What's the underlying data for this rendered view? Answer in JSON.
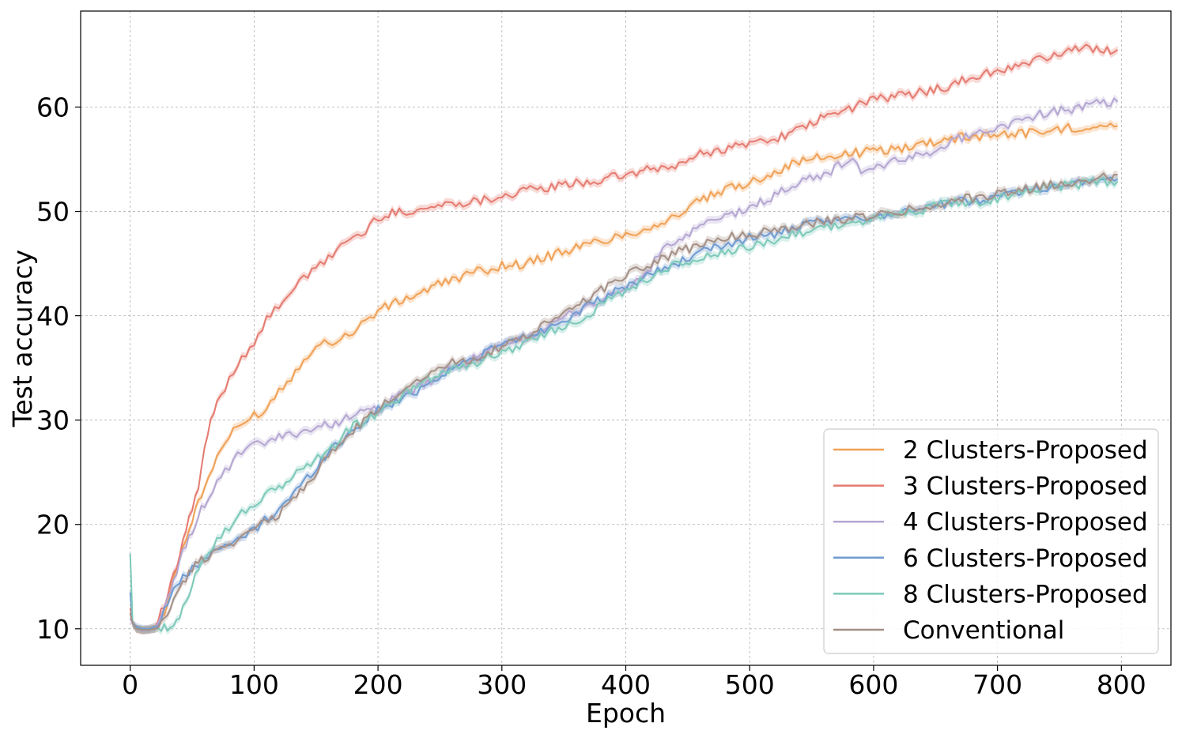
{
  "chart_data": {
    "type": "line",
    "title": "",
    "xlabel": "Epoch",
    "ylabel": "Test accuracy",
    "xlim": [
      -40,
      840
    ],
    "ylim": [
      6.5,
      69.2
    ],
    "x_ticks": [
      0,
      100,
      200,
      300,
      400,
      500,
      600,
      700,
      800
    ],
    "y_ticks": [
      10,
      20,
      30,
      40,
      50,
      60
    ],
    "grid": true,
    "legend_position": "lower right",
    "band_note": "shaded band around each line",
    "series": [
      {
        "name": "2 Clusters-Proposed",
        "color": "#f0a055",
        "x": [
          0,
          2,
          5,
          10,
          15,
          20,
          25,
          30,
          35,
          40,
          45,
          50,
          55,
          60,
          70,
          80,
          90,
          100,
          110,
          120,
          130,
          140,
          150,
          160,
          170,
          180,
          190,
          200,
          220,
          240,
          260,
          280,
          300,
          320,
          340,
          360,
          380,
          400,
          420,
          440,
          460,
          480,
          500,
          520,
          540,
          560,
          580,
          600,
          620,
          640,
          660,
          680,
          700,
          720,
          740,
          760,
          780,
          797
        ],
        "y": [
          11.5,
          10.5,
          10.0,
          9.9,
          10.0,
          10.2,
          11.0,
          12.5,
          15.0,
          17.0,
          18.5,
          20.5,
          22.0,
          23.5,
          26.5,
          28.5,
          29.5,
          30.5,
          31.0,
          33.0,
          34.0,
          36.0,
          37.0,
          37.5,
          37.8,
          38.5,
          39.5,
          40.5,
          41.5,
          42.5,
          43.5,
          44.2,
          44.8,
          45.0,
          45.8,
          46.5,
          47.2,
          47.8,
          48.5,
          49.5,
          51.0,
          52.0,
          52.8,
          53.8,
          54.8,
          55.2,
          55.5,
          55.8,
          56.0,
          56.5,
          57.0,
          57.2,
          57.4,
          57.5,
          57.7,
          58.0,
          58.3,
          58.2
        ]
      },
      {
        "name": "3 Clusters-Proposed",
        "color": "#e57b70",
        "x": [
          0,
          2,
          5,
          10,
          15,
          20,
          25,
          30,
          35,
          40,
          45,
          50,
          55,
          60,
          65,
          70,
          80,
          90,
          100,
          110,
          120,
          130,
          140,
          150,
          160,
          170,
          180,
          190,
          200,
          220,
          240,
          260,
          280,
          300,
          320,
          340,
          360,
          380,
          400,
          420,
          440,
          460,
          480,
          500,
          520,
          540,
          560,
          580,
          600,
          620,
          640,
          660,
          680,
          700,
          720,
          740,
          760,
          780,
          797
        ],
        "y": [
          12.0,
          10.5,
          10.0,
          9.8,
          9.9,
          10.0,
          11.5,
          13.0,
          15.0,
          17.0,
          19.5,
          21.5,
          23.5,
          27.0,
          30.0,
          31.5,
          34.0,
          36.0,
          37.5,
          39.5,
          41.0,
          42.5,
          43.5,
          44.5,
          45.5,
          46.8,
          47.5,
          48.0,
          49.5,
          50.0,
          50.3,
          50.8,
          51.0,
          51.5,
          52.0,
          52.3,
          52.7,
          53.0,
          53.5,
          54.0,
          54.3,
          55.5,
          56.0,
          56.5,
          57.0,
          57.8,
          59.0,
          59.8,
          60.8,
          61.0,
          61.5,
          62.0,
          62.8,
          63.5,
          64.0,
          64.8,
          65.5,
          65.6,
          65.5
        ]
      },
      {
        "name": "4 Clusters-Proposed",
        "color": "#b4a6d2",
        "x": [
          0,
          2,
          5,
          10,
          15,
          20,
          25,
          30,
          35,
          40,
          45,
          50,
          55,
          60,
          70,
          80,
          90,
          100,
          120,
          140,
          160,
          180,
          200,
          220,
          240,
          260,
          280,
          300,
          320,
          340,
          360,
          380,
          400,
          420,
          430,
          440,
          460,
          480,
          500,
          520,
          540,
          560,
          580,
          590,
          600,
          620,
          640,
          660,
          680,
          700,
          720,
          740,
          760,
          780,
          797
        ],
        "y": [
          11.0,
          10.5,
          10.0,
          9.8,
          9.9,
          10.0,
          11.0,
          12.5,
          14.5,
          16.5,
          18.0,
          19.5,
          20.8,
          22.0,
          24.0,
          25.5,
          27.0,
          27.5,
          28.3,
          29.0,
          29.5,
          30.5,
          31.0,
          32.5,
          33.5,
          35.0,
          36.0,
          37.0,
          38.0,
          39.0,
          40.5,
          41.5,
          42.5,
          44.5,
          46.5,
          47.0,
          48.5,
          49.5,
          50.3,
          51.5,
          52.8,
          53.5,
          55.0,
          54.0,
          54.2,
          54.8,
          55.5,
          56.5,
          57.5,
          58.0,
          58.8,
          59.5,
          59.8,
          60.3,
          60.5
        ]
      },
      {
        "name": "6 Clusters-Proposed",
        "color": "#6f9bd1",
        "x": [
          0,
          2,
          5,
          10,
          15,
          20,
          25,
          30,
          35,
          40,
          45,
          50,
          55,
          60,
          70,
          80,
          90,
          100,
          120,
          140,
          160,
          180,
          200,
          220,
          240,
          260,
          280,
          300,
          320,
          340,
          360,
          380,
          400,
          420,
          440,
          460,
          480,
          500,
          520,
          540,
          560,
          580,
          600,
          620,
          640,
          660,
          680,
          700,
          720,
          740,
          760,
          780,
          797
        ],
        "y": [
          13.5,
          10.5,
          10.2,
          10.0,
          10.0,
          10.2,
          11.0,
          12.5,
          13.8,
          14.5,
          15.0,
          15.8,
          16.3,
          16.8,
          17.5,
          18.0,
          18.8,
          19.5,
          21.5,
          24.0,
          27.0,
          29.0,
          31.0,
          32.0,
          33.5,
          35.0,
          36.0,
          37.3,
          38.0,
          39.0,
          40.3,
          41.5,
          42.8,
          44.0,
          45.0,
          46.0,
          46.8,
          47.5,
          47.8,
          48.5,
          49.0,
          49.2,
          49.5,
          50.0,
          50.3,
          50.8,
          51.0,
          51.5,
          52.0,
          52.3,
          52.7,
          53.0,
          53.1
        ]
      },
      {
        "name": "8 Clusters-Proposed",
        "color": "#7cc9b9",
        "x": [
          0,
          2,
          5,
          10,
          15,
          20,
          25,
          30,
          35,
          40,
          45,
          50,
          55,
          60,
          70,
          80,
          90,
          100,
          120,
          140,
          160,
          180,
          200,
          220,
          240,
          260,
          280,
          300,
          320,
          340,
          360,
          380,
          400,
          420,
          440,
          460,
          480,
          500,
          520,
          540,
          560,
          580,
          600,
          620,
          640,
          660,
          680,
          700,
          720,
          740,
          760,
          780,
          797
        ],
        "y": [
          17.2,
          10.5,
          10.0,
          9.9,
          9.9,
          10.0,
          10.0,
          10.0,
          10.3,
          11.0,
          12.5,
          14.5,
          16.0,
          17.0,
          18.5,
          19.8,
          21.0,
          22.0,
          23.5,
          25.5,
          27.0,
          29.5,
          30.5,
          32.5,
          34.0,
          35.0,
          35.5,
          36.5,
          37.5,
          38.5,
          39.5,
          41.0,
          42.5,
          43.8,
          44.8,
          45.5,
          46.0,
          46.5,
          47.3,
          48.0,
          48.5,
          48.8,
          49.2,
          49.8,
          50.2,
          50.8,
          50.9,
          51.2,
          51.8,
          52.3,
          52.5,
          52.8,
          52.9
        ]
      },
      {
        "name": "Conventional",
        "color": "#a48f86",
        "x": [
          0,
          2,
          5,
          10,
          15,
          20,
          25,
          30,
          35,
          40,
          45,
          50,
          55,
          60,
          70,
          80,
          90,
          100,
          120,
          140,
          160,
          180,
          200,
          220,
          240,
          260,
          280,
          300,
          320,
          340,
          360,
          380,
          400,
          420,
          440,
          460,
          480,
          500,
          520,
          540,
          560,
          580,
          600,
          620,
          640,
          660,
          680,
          700,
          720,
          740,
          760,
          780,
          797
        ],
        "y": [
          11.5,
          10.5,
          10.0,
          9.9,
          9.9,
          10.0,
          10.5,
          11.5,
          12.8,
          13.8,
          14.8,
          15.8,
          16.3,
          16.8,
          17.5,
          18.2,
          18.8,
          19.5,
          21.0,
          23.5,
          26.5,
          29.0,
          31.0,
          33.0,
          34.5,
          35.5,
          36.0,
          37.0,
          38.0,
          39.5,
          41.0,
          42.5,
          44.0,
          45.0,
          46.0,
          46.8,
          47.5,
          47.8,
          48.2,
          48.7,
          49.0,
          49.3,
          49.6,
          50.0,
          50.4,
          51.0,
          51.3,
          51.7,
          52.0,
          52.5,
          52.8,
          53.1,
          53.5
        ]
      }
    ]
  }
}
